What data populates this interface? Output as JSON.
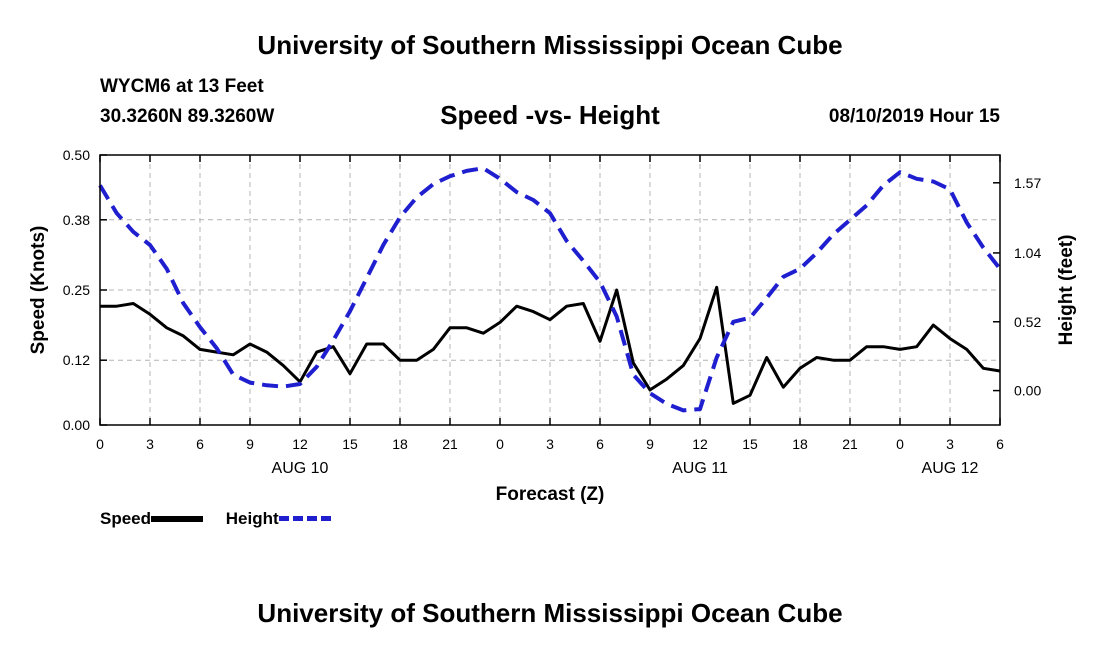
{
  "header": {
    "title": "University of Southern Mississippi Ocean Cube",
    "station": "WYCM6 at 13 Feet",
    "coordinates": "30.3260N 89.3260W",
    "subtitle": "Speed -vs- Height",
    "datetime": "08/10/2019 Hour 15"
  },
  "footer": {
    "title": "University of Southern Mississippi Ocean Cube"
  },
  "legend": {
    "speed_label": "Speed",
    "height_label": "Height"
  },
  "colors": {
    "speed": "#000000",
    "height": "#1f1fd0",
    "grid": "#b4b4b4"
  },
  "chart_data": {
    "type": "line",
    "title": "Speed -vs- Height",
    "xlabel": "Forecast (Z)",
    "ylabel": "Speed (Knots)",
    "y2label": "Height (feet)",
    "xlim": [
      0,
      54
    ],
    "ylim": [
      0,
      0.5
    ],
    "y2lim": [
      -0.26,
      1.78
    ],
    "x_ticks": [
      0,
      3,
      6,
      9,
      12,
      15,
      18,
      21,
      24,
      27,
      30,
      33,
      36,
      39,
      42,
      45,
      48,
      51,
      54
    ],
    "x_tick_labels": [
      "0",
      "3",
      "6",
      "9",
      "12",
      "15",
      "18",
      "21",
      "0",
      "3",
      "6",
      "9",
      "12",
      "15",
      "18",
      "21",
      "0",
      "3",
      "6"
    ],
    "date_labels": [
      {
        "x": 12,
        "label": "AUG 10"
      },
      {
        "x": 36,
        "label": "AUG 11"
      },
      {
        "x": 51,
        "label": "AUG 12"
      }
    ],
    "y_ticks": [
      0.0,
      0.12,
      0.25,
      0.38,
      0.5
    ],
    "y_tick_labels": [
      "0.00",
      "0.12",
      "0.25",
      "0.38",
      "0.50"
    ],
    "y2_ticks": [
      0.0,
      0.52,
      1.04,
      1.57
    ],
    "y2_tick_labels": [
      "0.00",
      "0.52",
      "1.04",
      "1.57"
    ],
    "x": [
      0,
      1,
      2,
      3,
      4,
      5,
      6,
      7,
      8,
      9,
      10,
      11,
      12,
      13,
      14,
      15,
      16,
      17,
      18,
      19,
      20,
      21,
      22,
      23,
      24,
      25,
      26,
      27,
      28,
      29,
      30,
      31,
      32,
      33,
      34,
      35,
      36,
      37,
      38,
      39,
      40,
      41,
      42,
      43,
      44,
      45,
      46,
      47,
      48,
      49,
      50,
      51,
      52,
      53,
      54
    ],
    "series": [
      {
        "name": "Speed",
        "axis": "left",
        "style": "solid",
        "values": [
          0.22,
          0.22,
          0.225,
          0.205,
          0.18,
          0.165,
          0.14,
          0.135,
          0.13,
          0.15,
          0.135,
          0.11,
          0.08,
          0.135,
          0.145,
          0.095,
          0.15,
          0.15,
          0.12,
          0.12,
          0.14,
          0.18,
          0.18,
          0.17,
          0.19,
          0.22,
          0.21,
          0.195,
          0.22,
          0.225,
          0.155,
          0.25,
          0.115,
          0.065,
          0.085,
          0.11,
          0.16,
          0.255,
          0.04,
          0.055,
          0.125,
          0.07,
          0.105,
          0.125,
          0.12,
          0.12,
          0.145,
          0.145,
          0.14,
          0.145,
          0.185,
          0.16,
          0.14,
          0.105,
          0.1
        ]
      },
      {
        "name": "Height",
        "axis": "right",
        "style": "dashed",
        "values": [
          1.55,
          1.34,
          1.2,
          1.1,
          0.92,
          0.66,
          0.48,
          0.32,
          0.12,
          0.06,
          0.04,
          0.03,
          0.05,
          0.18,
          0.38,
          0.6,
          0.85,
          1.1,
          1.31,
          1.46,
          1.56,
          1.62,
          1.66,
          1.68,
          1.6,
          1.5,
          1.44,
          1.34,
          1.13,
          0.98,
          0.82,
          0.56,
          0.12,
          -0.02,
          -0.1,
          -0.15,
          -0.14,
          0.25,
          0.52,
          0.55,
          0.7,
          0.86,
          0.92,
          1.04,
          1.18,
          1.29,
          1.4,
          1.55,
          1.65,
          1.6,
          1.58,
          1.52,
          1.27,
          1.08,
          0.92
        ]
      }
    ]
  }
}
